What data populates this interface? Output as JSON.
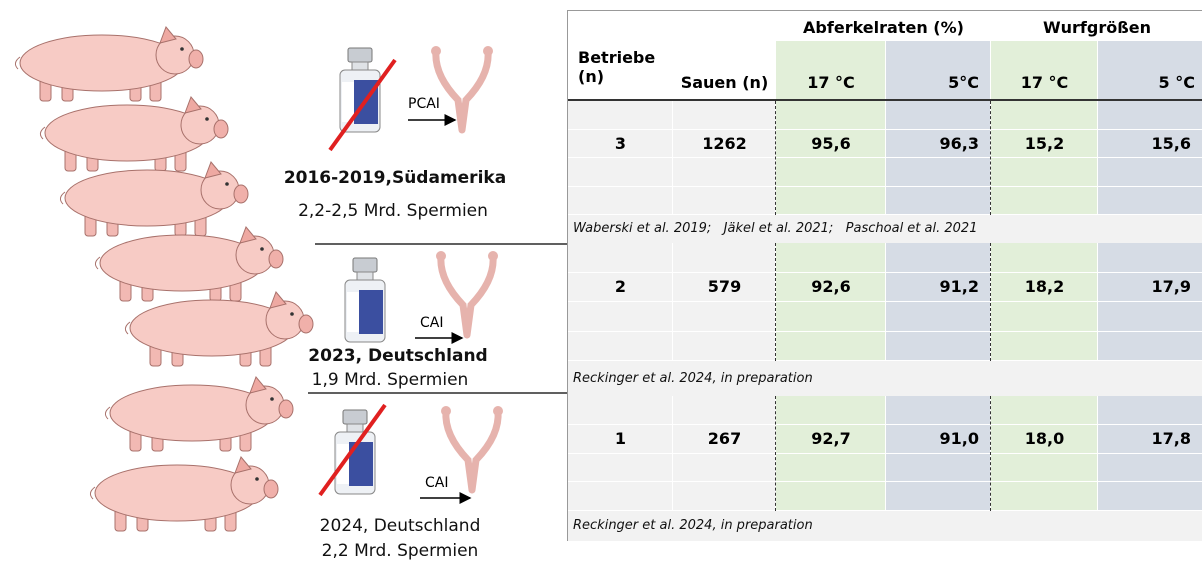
{
  "panels": [
    {
      "method": "PCAI",
      "title": "2016-2019,Südamerika",
      "subtitle": "2,2-2,5 Mrd. Spermien"
    },
    {
      "method": "CAI",
      "title": "2023, Deutschland",
      "subtitle": "1,9 Mrd. Spermien"
    },
    {
      "method": "CAI",
      "title": "2024, Deutschland",
      "subtitle": "2,2 Mrd. Spermien"
    }
  ],
  "table": {
    "group_headers": [
      "Abferkelraten (%)",
      "Wurfgrößen"
    ],
    "columns": [
      "Betriebe\n(n)",
      "Sauen (n)",
      "17 °C",
      "5°C",
      "17 °C",
      "5 °C"
    ],
    "rows": [
      {
        "values": [
          "3",
          "1262",
          "95,6",
          "96,3",
          "15,2",
          "15,6"
        ],
        "citation": "Waberski et al. 2019;   Jäkel et al. 2021;   Paschoal et al. 2021"
      },
      {
        "values": [
          "2",
          "579",
          "92,6",
          "91,2",
          "18,2",
          "17,9"
        ],
        "citation": "Reckinger et al. 2024, in preparation"
      },
      {
        "values": [
          "1",
          "267",
          "92,7",
          "91,0",
          "18,0",
          "17,8"
        ],
        "citation": "Reckinger et al. 2024, in preparation"
      }
    ]
  }
}
